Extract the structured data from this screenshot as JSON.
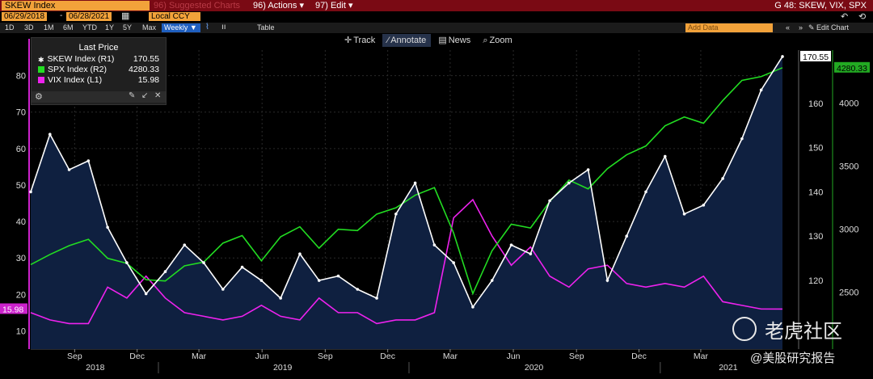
{
  "header": {
    "ticker": "SKEW Index",
    "suggested": "96) Suggested Charts",
    "actions": "96) Actions ▾",
    "edit": "97) Edit ▾",
    "title_right": "G 48: SKEW, VIX, SPX",
    "start_date": "06/29/2018",
    "end_date": "06/28/2021",
    "currency": "Local CCY",
    "periods": [
      "1D",
      "3D",
      "1M",
      "6M",
      "YTD",
      "1Y",
      "5Y",
      "Max"
    ],
    "frequency": "Weekly ▼",
    "table_label": "Table",
    "add_data": "Add Data",
    "edit_chart": "✎ Edit Chart"
  },
  "toolbar": {
    "track": "Track",
    "annotate": "Annotate",
    "news": "News",
    "zoom": "Zoom"
  },
  "legend": {
    "title": "Last Price",
    "rows": [
      {
        "label": "SKEW Index  (R1)",
        "value": "170.55",
        "color": "#ffffff"
      },
      {
        "label": "SPX Index  (R2)",
        "value": "4280.33",
        "color": "#22dd22"
      },
      {
        "label": "VIX Index  (L1)",
        "value": "15.98",
        "color": "#ee22ee"
      }
    ]
  },
  "watermark": {
    "brand": "老虎社区",
    "handle": "@美股研究报告"
  },
  "chart_data": {
    "type": "line",
    "title": "",
    "x_ticks": [
      "Sep",
      "Dec",
      "Mar",
      "Jun",
      "Sep",
      "Dec",
      "Mar",
      "Jun",
      "Sep",
      "Dec",
      "Mar"
    ],
    "x_tick_dates": [
      "2018-09-01",
      "2018-12-01",
      "2019-03-01",
      "2019-06-01",
      "2019-09-01",
      "2019-12-01",
      "2020-03-01",
      "2020-06-01",
      "2020-09-01",
      "2020-12-01",
      "2021-03-01"
    ],
    "years": [
      "2018",
      "2019",
      "2020",
      "2021"
    ],
    "x_range": [
      "2018-06-29",
      "2021-06-28"
    ],
    "left_axis": {
      "label": "VIX Index (L1)",
      "range": [
        5,
        87
      ],
      "ticks": [
        10,
        20,
        30,
        40,
        50,
        60,
        70,
        80
      ]
    },
    "right1_axis": {
      "label": "SKEW Index (R1)",
      "range": [
        104.5,
        172
      ],
      "ticks": [
        120,
        130,
        140,
        150,
        160
      ]
    },
    "right2_axis": {
      "label": "SPX Index (R2)",
      "range": [
        2050,
        4420
      ],
      "ticks": [
        2500,
        3000,
        3500,
        4000
      ]
    },
    "last_values": {
      "SKEW": "170.55",
      "SPX": "4280.33",
      "VIX": "15.98"
    },
    "series": [
      {
        "name": "SKEW Index",
        "axis": "R1",
        "color": "#ffffff",
        "fill": "#0f2040",
        "x": [
          "2018-06-29",
          "2018-07-27",
          "2018-08-24",
          "2018-09-21",
          "2018-10-19",
          "2018-11-16",
          "2018-12-14",
          "2019-01-11",
          "2019-02-08",
          "2019-03-08",
          "2019-04-05",
          "2019-05-03",
          "2019-05-31",
          "2019-06-28",
          "2019-07-26",
          "2019-08-23",
          "2019-09-20",
          "2019-10-18",
          "2019-11-15",
          "2019-12-13",
          "2020-01-10",
          "2020-02-07",
          "2020-03-06",
          "2020-04-03",
          "2020-05-01",
          "2020-05-29",
          "2020-06-26",
          "2020-07-24",
          "2020-08-21",
          "2020-09-18",
          "2020-10-16",
          "2020-11-13",
          "2020-12-11",
          "2021-01-08",
          "2021-02-05",
          "2021-03-05",
          "2021-04-02",
          "2021-04-30",
          "2021-05-28",
          "2021-06-28"
        ],
        "y": [
          140,
          153,
          145,
          147,
          132,
          124,
          117,
          122,
          128,
          124,
          118,
          123,
          120,
          116,
          126,
          120,
          121,
          118,
          116,
          135,
          142,
          128,
          124,
          114,
          120,
          128,
          126,
          138,
          142,
          145,
          120,
          130,
          140,
          148,
          135,
          137,
          143,
          152,
          163,
          170.55
        ]
      },
      {
        "name": "SPX Index",
        "axis": "R2",
        "color": "#22dd22",
        "x": [
          "2018-06-29",
          "2018-07-27",
          "2018-08-24",
          "2018-09-21",
          "2018-10-19",
          "2018-11-16",
          "2018-12-14",
          "2019-01-11",
          "2019-02-08",
          "2019-03-08",
          "2019-04-05",
          "2019-05-03",
          "2019-05-31",
          "2019-06-28",
          "2019-07-26",
          "2019-08-23",
          "2019-09-20",
          "2019-10-18",
          "2019-11-15",
          "2019-12-13",
          "2020-01-10",
          "2020-02-07",
          "2020-03-06",
          "2020-04-03",
          "2020-05-01",
          "2020-05-29",
          "2020-06-26",
          "2020-07-24",
          "2020-08-21",
          "2020-09-18",
          "2020-10-16",
          "2020-11-13",
          "2020-12-11",
          "2021-01-08",
          "2021-02-05",
          "2021-03-05",
          "2021-04-02",
          "2021-04-30",
          "2021-05-28",
          "2021-06-28"
        ],
        "y": [
          2720,
          2800,
          2870,
          2920,
          2770,
          2730,
          2600,
          2590,
          2710,
          2740,
          2890,
          2950,
          2750,
          2940,
          3020,
          2850,
          3000,
          2990,
          3120,
          3170,
          3270,
          3330,
          2970,
          2490,
          2830,
          3040,
          3010,
          3220,
          3390,
          3320,
          3480,
          3590,
          3660,
          3820,
          3890,
          3840,
          4020,
          4180,
          4210,
          4280.33
        ]
      },
      {
        "name": "VIX Index",
        "axis": "L1",
        "color": "#ee22ee",
        "x": [
          "2018-06-29",
          "2018-07-27",
          "2018-08-24",
          "2018-09-21",
          "2018-10-19",
          "2018-11-16",
          "2018-12-14",
          "2019-01-11",
          "2019-02-08",
          "2019-03-08",
          "2019-04-05",
          "2019-05-03",
          "2019-05-31",
          "2019-06-28",
          "2019-07-26",
          "2019-08-23",
          "2019-09-20",
          "2019-10-18",
          "2019-11-15",
          "2019-12-13",
          "2020-01-10",
          "2020-02-07",
          "2020-03-06",
          "2020-04-03",
          "2020-05-01",
          "2020-05-29",
          "2020-06-26",
          "2020-07-24",
          "2020-08-21",
          "2020-09-18",
          "2020-10-16",
          "2020-11-13",
          "2020-12-11",
          "2021-01-08",
          "2021-02-05",
          "2021-03-05",
          "2021-04-02",
          "2021-04-30",
          "2021-05-28",
          "2021-06-28"
        ],
        "y": [
          15,
          13,
          12,
          12,
          22,
          19,
          25,
          19,
          15,
          14,
          13,
          14,
          17,
          14,
          13,
          19,
          15,
          15,
          12,
          13,
          13,
          15,
          41,
          46,
          36,
          28,
          33,
          25,
          22,
          27,
          28,
          23,
          22,
          23,
          22,
          25,
          18,
          17,
          16,
          15.98
        ]
      }
    ]
  }
}
